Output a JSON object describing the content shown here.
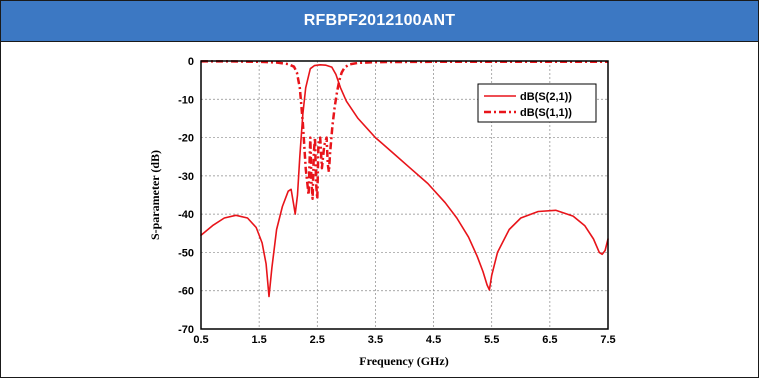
{
  "header": {
    "title": "RFBPF2012100ANT"
  },
  "colors": {
    "header_bg": "#3c78c3",
    "series": "#e8141a"
  },
  "chart_data": {
    "type": "line",
    "title": "",
    "xlabel": "Frequency (GHz)",
    "ylabel": "S-parameter (dB)",
    "xlim": [
      0.5,
      7.5
    ],
    "ylim": [
      -70,
      0
    ],
    "xticks": [
      "0.5",
      "1.5",
      "2.5",
      "3.5",
      "4.5",
      "5.5",
      "6.5",
      "7.5"
    ],
    "yticks": [
      "0",
      "-10",
      "-20",
      "-30",
      "-40",
      "-50",
      "-60",
      "-70"
    ],
    "grid": true,
    "legend_position": "top-right",
    "series": [
      {
        "name": "dB(S(2,1))",
        "style": "solid",
        "x": [
          0.5,
          0.7,
          0.9,
          1.1,
          1.3,
          1.45,
          1.55,
          1.62,
          1.67,
          1.72,
          1.8,
          1.9,
          2.0,
          2.05,
          2.1,
          2.12,
          2.16,
          2.2,
          2.25,
          2.3,
          2.38,
          2.45,
          2.55,
          2.65,
          2.75,
          2.82,
          2.9,
          3.0,
          3.2,
          3.5,
          3.8,
          4.1,
          4.4,
          4.7,
          4.9,
          5.1,
          5.25,
          5.35,
          5.42,
          5.46,
          5.5,
          5.6,
          5.8,
          6.0,
          6.3,
          6.6,
          6.9,
          7.1,
          7.25,
          7.35,
          7.4,
          7.45,
          7.5
        ],
        "y": [
          -45.5,
          -43,
          -41,
          -40.3,
          -41,
          -43.5,
          -47.5,
          -53,
          -61.5,
          -54,
          -44,
          -38,
          -34,
          -33.5,
          -38,
          -40,
          -35,
          -25,
          -14,
          -7,
          -2,
          -1.2,
          -1,
          -1.1,
          -1.6,
          -3.5,
          -7,
          -10.5,
          -15,
          -20,
          -24,
          -28,
          -32,
          -37,
          -41,
          -46,
          -51,
          -55,
          -58.5,
          -59.8,
          -56,
          -50,
          -44,
          -41,
          -39.3,
          -39,
          -40.5,
          -43,
          -46.5,
          -50,
          -50.5,
          -49.5,
          -46.5
        ]
      },
      {
        "name": "dB(S(1,1))",
        "style": "dash-dot",
        "x": [
          0.5,
          1.0,
          1.5,
          1.8,
          2.0,
          2.1,
          2.15,
          2.2,
          2.25,
          2.3,
          2.35,
          2.38,
          2.4,
          2.42,
          2.44,
          2.46,
          2.48,
          2.5,
          2.52,
          2.55,
          2.58,
          2.62,
          2.66,
          2.68,
          2.7,
          2.72,
          2.76,
          2.8,
          2.84,
          2.88,
          2.92,
          2.97,
          3.05,
          3.2,
          3.5,
          4.5,
          5.5,
          6.5,
          7.5
        ],
        "y": [
          -0.1,
          -0.1,
          -0.2,
          -0.4,
          -0.8,
          -1.5,
          -3,
          -7,
          -16,
          -28,
          -35,
          -20,
          -32,
          -36,
          -24,
          -20,
          -32,
          -36,
          -22,
          -20,
          -28,
          -22,
          -20,
          -27,
          -29,
          -24,
          -17,
          -12,
          -8,
          -5,
          -3,
          -1.7,
          -0.9,
          -0.5,
          -0.3,
          -0.2,
          -0.2,
          -0.2,
          -0.2
        ]
      }
    ]
  }
}
